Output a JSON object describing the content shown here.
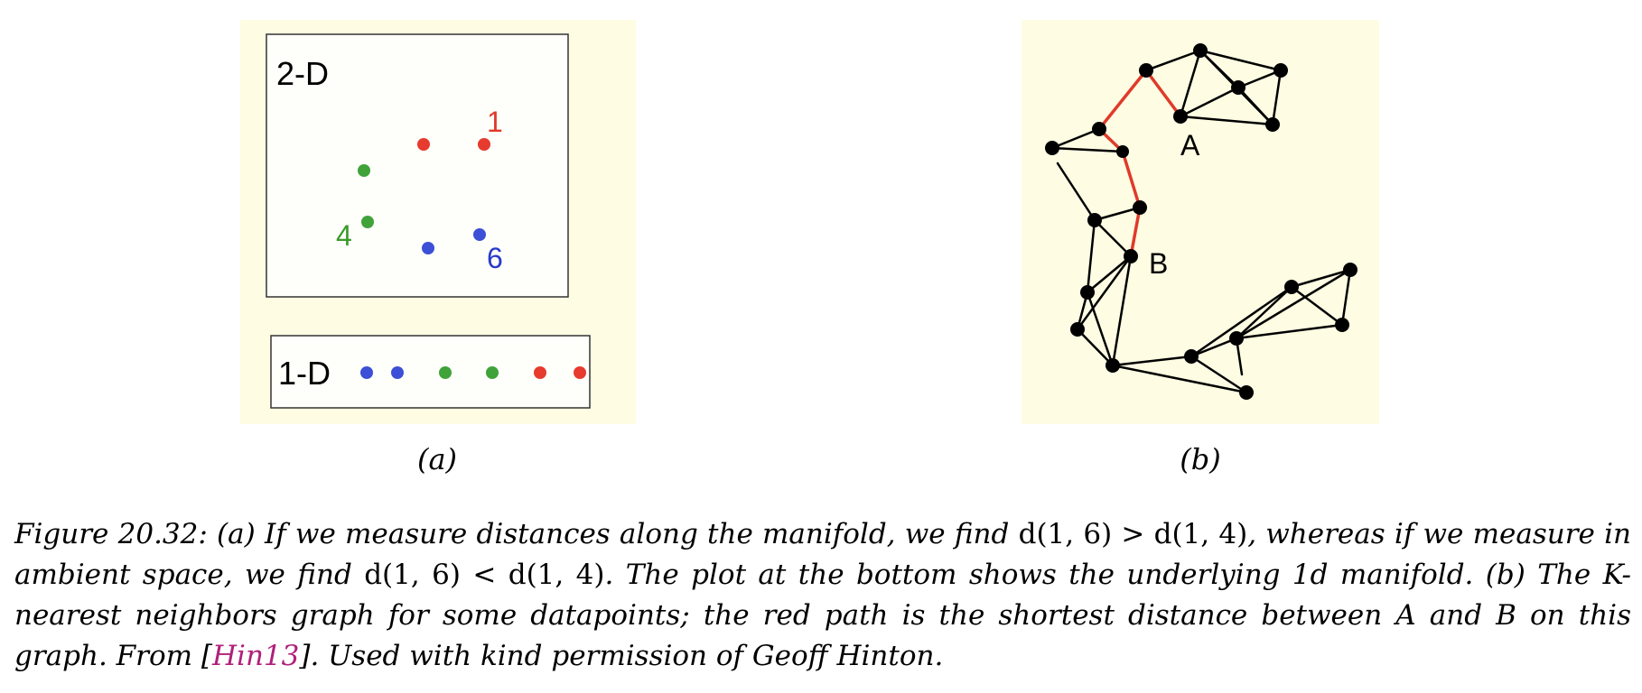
{
  "panel_a": {
    "box2d_label": "2-D",
    "box1d_label": "1-D",
    "point_labels": [
      {
        "text": "1",
        "color": "#e03a2a"
      },
      {
        "text": "4",
        "color": "#3a9a2a"
      },
      {
        "text": "6",
        "color": "#2a3acc"
      }
    ],
    "colors": {
      "red": "#e63b2e",
      "green": "#3fa33a",
      "blue": "#3c4fd6",
      "background": "#fefde3"
    }
  },
  "panel_b": {
    "label_a": "A",
    "label_b": "B",
    "path_color": "#e03a2a",
    "background": "#fefde3"
  },
  "sublabels": {
    "a": "(a)",
    "b": "(b)"
  },
  "caption": {
    "p1": "Figure 20.32: (a) If we measure distances along the manifold, we find ",
    "m1": "d(1, 6) > d(1, 4)",
    "p2": ", whereas if we measure in ambient space, we find ",
    "m2": "d(1, 6) < d(1, 4)",
    "p3": ". The plot at the bottom shows the underlying 1d manifold. (b) The K-nearest neighbors graph for some datapoints; the red path is the shortest distance between A and B on this graph. From [",
    "cite": "Hin13",
    "p4": "]. Used with kind permission of Geoff Hinton."
  }
}
